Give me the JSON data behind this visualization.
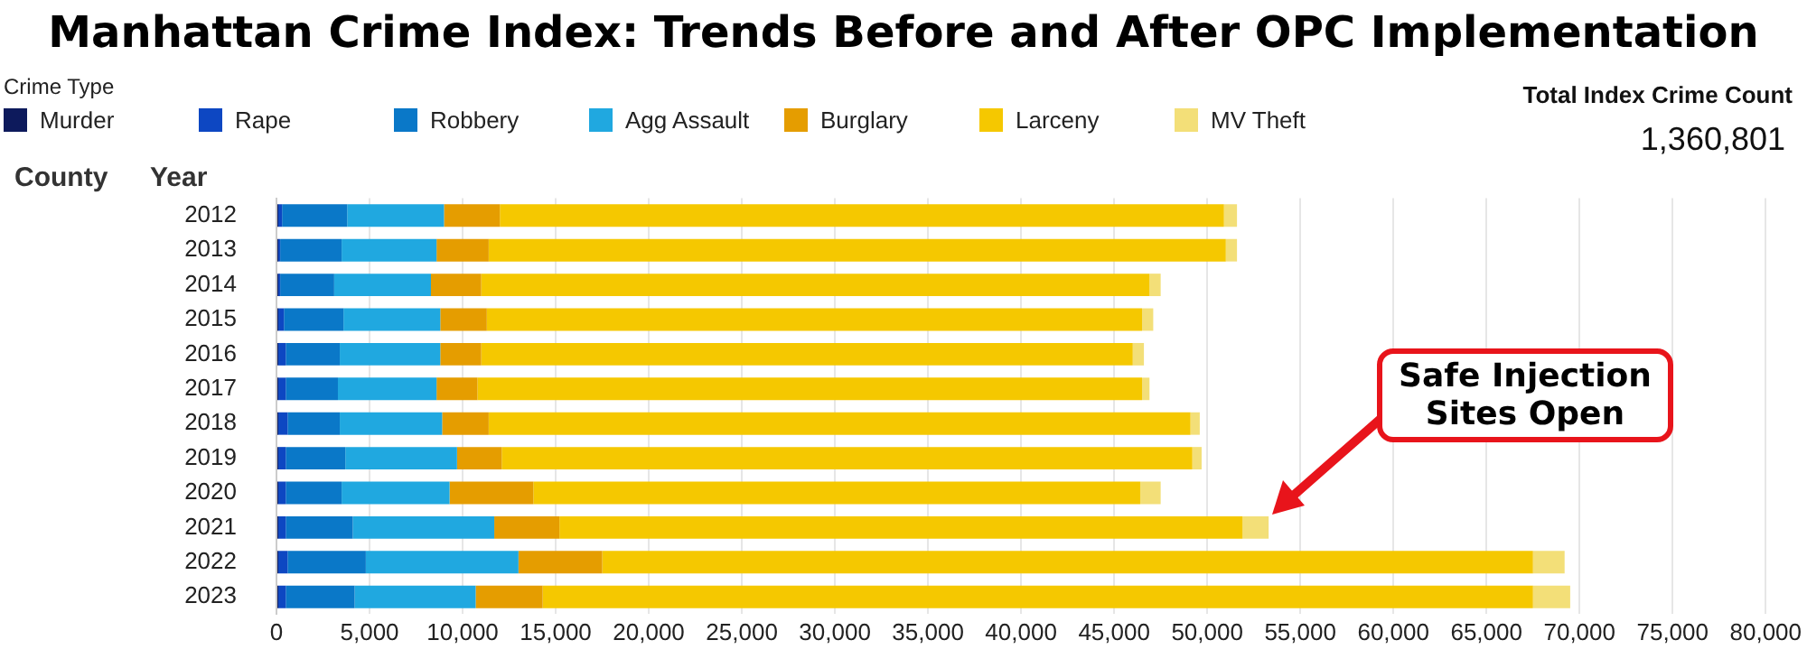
{
  "chart_data": {
    "type": "bar",
    "orientation": "horizontal",
    "stacked": true,
    "title": "Manhattan Crime Index: Trends Before and After OPC Implementation",
    "legend_title": "Crime Type",
    "legend": "top",
    "ylabel": "Year",
    "grid": "x",
    "categories": [
      "2012",
      "2013",
      "2014",
      "2015",
      "2016",
      "2017",
      "2018",
      "2019",
      "2020",
      "2021",
      "2022",
      "2023"
    ],
    "xlim": [
      0,
      80000
    ],
    "xticks": [
      0,
      {
        "value": 5000,
        "label": "5,000"
      },
      {
        "value": 10000,
        "label": "10,000"
      },
      {
        "value": 15000,
        "label": "15,000"
      },
      {
        "value": 20000,
        "label": "20,000"
      },
      {
        "value": 25000,
        "label": "25,000"
      },
      {
        "value": 30000,
        "label": "30,000"
      },
      {
        "value": 35000,
        "label": "35,000"
      },
      {
        "value": 40000,
        "label": "40,000"
      },
      {
        "value": 45000,
        "label": "45,000"
      },
      {
        "value": 50000,
        "label": "50,000"
      },
      {
        "value": 55000,
        "label": "55,000"
      },
      {
        "value": 60000,
        "label": "60,000"
      },
      {
        "value": 65000,
        "label": "65,000"
      },
      {
        "value": 70000,
        "label": "70,000"
      },
      {
        "value": 75000,
        "label": "75,000"
      },
      {
        "value": 80000,
        "label": "80,000"
      }
    ],
    "series": [
      {
        "name": "Murder",
        "color": "#0d1a5c",
        "values": [
          100,
          100,
          100,
          100,
          100,
          100,
          100,
          100,
          100,
          100,
          100,
          100
        ]
      },
      {
        "name": "Rape",
        "color": "#0d47c2",
        "values": [
          200,
          100,
          100,
          300,
          400,
          400,
          500,
          400,
          400,
          400,
          500,
          400
        ]
      },
      {
        "name": "Robbery",
        "color": "#0a78c8",
        "values": [
          3500,
          3300,
          2900,
          3200,
          2900,
          2800,
          2800,
          3200,
          3000,
          3600,
          4200,
          3700
        ]
      },
      {
        "name": "Agg Assault",
        "color": "#20a8e0",
        "values": [
          5200,
          5100,
          5200,
          5200,
          5400,
          5300,
          5500,
          6000,
          5800,
          7600,
          8200,
          6500
        ]
      },
      {
        "name": "Burglary",
        "color": "#e59d00",
        "values": [
          3000,
          2800,
          2700,
          2500,
          2200,
          2200,
          2500,
          2400,
          4500,
          3500,
          4500,
          3600
        ]
      },
      {
        "name": "Larceny",
        "color": "#f5c800",
        "values": [
          38900,
          39600,
          35900,
          35200,
          35000,
          35700,
          37700,
          37100,
          32600,
          36700,
          50000,
          53200
        ]
      },
      {
        "name": "MV Theft",
        "color": "#f3df78",
        "values": [
          700,
          600,
          600,
          600,
          600,
          400,
          500,
          500,
          1100,
          1400,
          1700,
          2000
        ]
      }
    ],
    "annotations": [
      "County",
      "Total Index Crime Count",
      "1,360,801",
      "Safe Injection Sites Open"
    ]
  }
}
